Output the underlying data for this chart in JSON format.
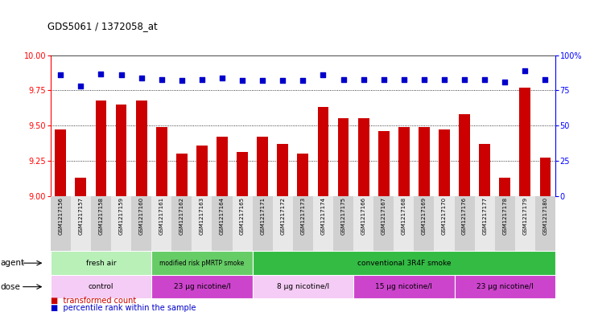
{
  "title": "GDS5061 / 1372058_at",
  "samples": [
    "GSM1217156",
    "GSM1217157",
    "GSM1217158",
    "GSM1217159",
    "GSM1217160",
    "GSM1217161",
    "GSM1217162",
    "GSM1217163",
    "GSM1217164",
    "GSM1217165",
    "GSM1217171",
    "GSM1217172",
    "GSM1217173",
    "GSM1217174",
    "GSM1217175",
    "GSM1217166",
    "GSM1217167",
    "GSM1217168",
    "GSM1217169",
    "GSM1217170",
    "GSM1217176",
    "GSM1217177",
    "GSM1217178",
    "GSM1217179",
    "GSM1217180"
  ],
  "bar_values": [
    9.47,
    9.13,
    9.68,
    9.65,
    9.68,
    9.49,
    9.3,
    9.36,
    9.42,
    9.31,
    9.42,
    9.37,
    9.3,
    9.63,
    9.55,
    9.55,
    9.46,
    9.49,
    9.49,
    9.47,
    9.58,
    9.37,
    9.13,
    9.77,
    9.27
  ],
  "percentile_values": [
    86,
    78,
    87,
    86,
    84,
    83,
    82,
    83,
    84,
    82,
    82,
    82,
    82,
    86,
    83,
    83,
    83,
    83,
    83,
    83,
    83,
    83,
    81,
    89,
    83
  ],
  "bar_color": "#cc0000",
  "percentile_color": "#0000cc",
  "ylim_left": [
    9.0,
    10.0
  ],
  "ylim_right": [
    0,
    100
  ],
  "yticks_left": [
    9.0,
    9.25,
    9.5,
    9.75,
    10.0
  ],
  "yticks_right": [
    0,
    25,
    50,
    75,
    100
  ],
  "hlines": [
    9.25,
    9.5,
    9.75
  ],
  "agent_groups": [
    {
      "label": "fresh air",
      "start": 0,
      "end": 5
    },
    {
      "label": "modified risk pMRTP smoke",
      "start": 5,
      "end": 10
    },
    {
      "label": "conventional 3R4F smoke",
      "start": 10,
      "end": 25
    }
  ],
  "dose_groups": [
    {
      "label": "control",
      "start": 0,
      "end": 5,
      "light": true
    },
    {
      "label": "23 µg nicotine/l",
      "start": 5,
      "end": 10,
      "light": false
    },
    {
      "label": "8 µg nicotine/l",
      "start": 10,
      "end": 15,
      "light": true
    },
    {
      "label": "15 µg nicotine/l",
      "start": 15,
      "end": 20,
      "light": false
    },
    {
      "label": "23 µg nicotine/l",
      "start": 20,
      "end": 25,
      "light": false
    }
  ],
  "agent_colors": [
    "#b8f0b8",
    "#66cc66",
    "#33bb44"
  ],
  "dose_colors_light": "#f5ccf5",
  "dose_colors_dark": "#cc44cc",
  "agent_label": "agent",
  "dose_label": "dose",
  "legend_bar_label": "transformed count",
  "legend_pct_label": "percentile rank within the sample",
  "bg_color": "#ffffff"
}
